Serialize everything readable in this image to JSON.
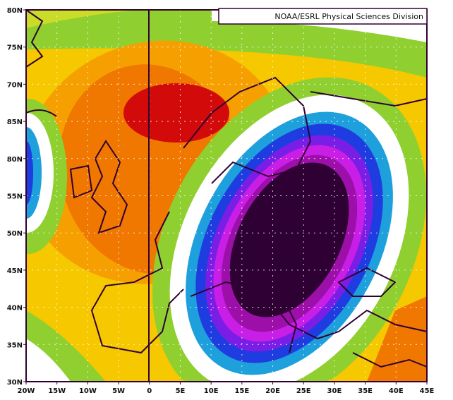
{
  "title": "NOAA/ESRL Physical Sciences Division",
  "lat_labels": [
    "80N",
    "75N",
    "70N",
    "85N",
    "80N",
    "55N",
    "50N",
    "45N",
    "40N",
    "35N",
    "30N"
  ],
  "lon_labels": [
    "20W",
    "15W",
    "10W",
    "5W",
    "0",
    "5E",
    "10E",
    "15E",
    "20E",
    "25E",
    "30E",
    "35E",
    "40E",
    "45E"
  ],
  "colors": {
    "core": "#2e0033",
    "dark_magenta": "#9c0fa8",
    "magenta": "#c81ee6",
    "violet": "#7a1ee6",
    "blue": "#1e3ce0",
    "light_blue": "#1ea0dc",
    "white": "#ffffff",
    "green": "#8fd030",
    "yellow_green": "#c8dc28",
    "yellow": "#f5c800",
    "light_orange": "#f5a000",
    "orange": "#f07800",
    "red": "#d20a0a",
    "coast": "#300030"
  }
}
